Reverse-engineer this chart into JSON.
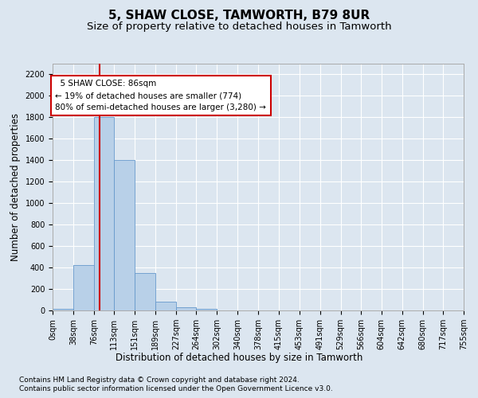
{
  "title": "5, SHAW CLOSE, TAMWORTH, B79 8UR",
  "subtitle": "Size of property relative to detached houses in Tamworth",
  "xlabel": "Distribution of detached houses by size in Tamworth",
  "ylabel": "Number of detached properties",
  "footer_line1": "Contains HM Land Registry data © Crown copyright and database right 2024.",
  "footer_line2": "Contains public sector information licensed under the Open Government Licence v3.0.",
  "bin_edges": [
    0,
    38,
    76,
    113,
    151,
    189,
    227,
    264,
    302,
    340,
    378,
    415,
    453,
    491,
    529,
    566,
    604,
    642,
    680,
    717,
    755
  ],
  "bar_heights": [
    15,
    420,
    1800,
    1400,
    350,
    80,
    30,
    15,
    0,
    0,
    0,
    0,
    0,
    0,
    0,
    0,
    0,
    0,
    0,
    0
  ],
  "property_size": 86,
  "bar_color": "#b8d0e8",
  "bar_edgecolor": "#6699cc",
  "vline_color": "#cc0000",
  "annotation_text": "  5 SHAW CLOSE: 86sqm\n← 19% of detached houses are smaller (774)\n80% of semi-detached houses are larger (3,280) →",
  "annotation_box_edgecolor": "#cc0000",
  "annotation_box_facecolor": "#ffffff",
  "ylim": [
    0,
    2300
  ],
  "yticks": [
    0,
    200,
    400,
    600,
    800,
    1000,
    1200,
    1400,
    1600,
    1800,
    2000,
    2200
  ],
  "background_color": "#dce6f0",
  "grid_color": "#ffffff",
  "title_fontsize": 11,
  "subtitle_fontsize": 9.5,
  "axis_label_fontsize": 8.5,
  "tick_fontsize": 7,
  "footer_fontsize": 6.5
}
